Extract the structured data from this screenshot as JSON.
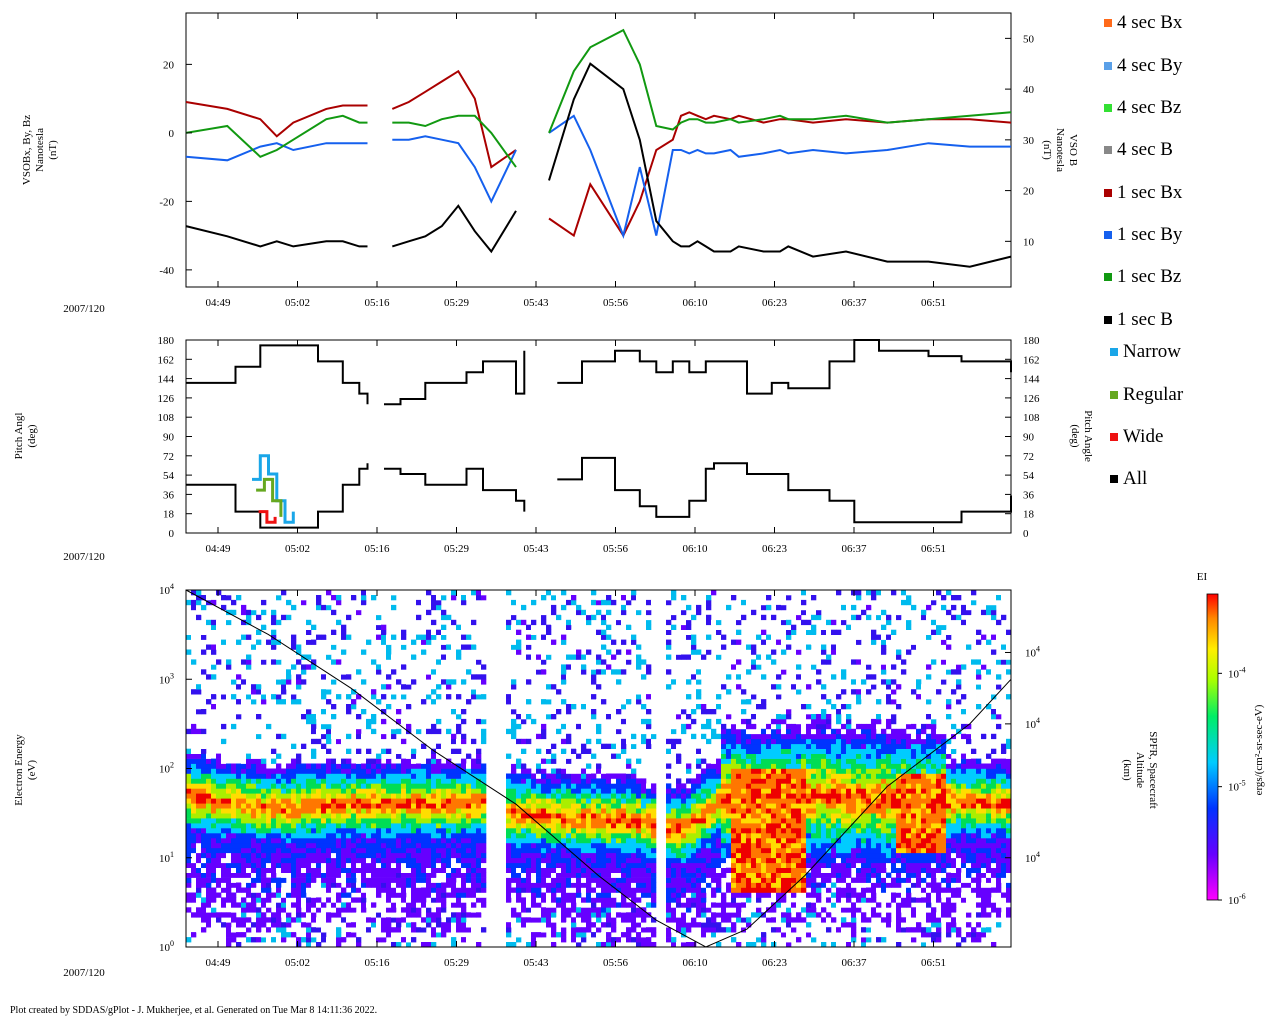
{
  "footer": "Plot created by SDDAS/gPlot - J. Mukherjee, et al.  Generated on Tue Mar 8 14:11:36 2022.",
  "date_label": "2007/120",
  "time_ticks": [
    "04:49",
    "05:02",
    "05:16",
    "05:29",
    "05:43",
    "05:56",
    "06:10",
    "06:23",
    "06:37",
    "06:51"
  ],
  "chart_data": [
    {
      "id": "magnetic-field",
      "type": "line",
      "ylabel_lines": [
        "VSOBx, By, Bz",
        "Nanotesla",
        "(nT)"
      ],
      "y2label_lines": [
        "VSO B",
        "Nanotesla",
        "(nT)"
      ],
      "ylim": [
        -45,
        35
      ],
      "y2lim": [
        1,
        55
      ],
      "yticks": [
        -40,
        -20,
        0,
        20
      ],
      "y2ticks": [
        10,
        20,
        30,
        40,
        50
      ],
      "legend": [
        {
          "label": "4 sec Bx",
          "color": "#ff6a1a"
        },
        {
          "label": "4 sec By",
          "color": "#5aa0e8"
        },
        {
          "label": "4 sec Bz",
          "color": "#33e033"
        },
        {
          "label": "4 sec B",
          "color": "#888888"
        },
        {
          "label": "1 sec Bx",
          "color": "#aa0000"
        },
        {
          "label": "1 sec By",
          "color": "#1560ee"
        },
        {
          "label": "1 sec Bz",
          "color": "#119911"
        },
        {
          "label": "1 sec B",
          "color": "#000000"
        }
      ],
      "series": [
        {
          "name": "1 sec Bx",
          "color": "#aa0000",
          "axis": "left",
          "x": [
            0,
            5,
            9,
            11,
            13,
            17,
            19,
            21,
            22,
            23,
            25,
            27,
            29,
            31,
            33,
            35,
            37,
            40,
            42,
            44,
            47,
            49,
            53,
            55,
            57,
            59,
            60,
            61,
            62,
            63,
            64,
            66,
            67,
            70,
            72,
            73,
            76,
            80,
            85,
            90,
            95,
            100
          ],
          "y": [
            9,
            7,
            4,
            -1,
            3,
            7,
            8,
            8,
            8,
            null,
            7,
            9,
            12,
            15,
            18,
            10,
            -10,
            -5,
            null,
            -25,
            -30,
            -15,
            -30,
            -20,
            -5,
            -2,
            5,
            6,
            5,
            4,
            5,
            4,
            5,
            3,
            4,
            4,
            3,
            4,
            3,
            4,
            4,
            3
          ]
        },
        {
          "name": "1 sec By",
          "color": "#1560ee",
          "axis": "left",
          "x": [
            0,
            5,
            9,
            11,
            13,
            17,
            19,
            21,
            22,
            23,
            25,
            27,
            29,
            31,
            33,
            35,
            37,
            40,
            42,
            44,
            47,
            49,
            53,
            55,
            57,
            59,
            60,
            61,
            62,
            63,
            64,
            66,
            67,
            70,
            72,
            73,
            76,
            80,
            85,
            90,
            95,
            100
          ],
          "y": [
            -7,
            -8,
            -4,
            -3,
            -5,
            -3,
            -3,
            -3,
            -3,
            null,
            -2,
            -2,
            -1,
            -2,
            -3,
            -10,
            -20,
            -5,
            null,
            0,
            5,
            -5,
            -30,
            -10,
            -30,
            -5,
            -5,
            -6,
            -5,
            -6,
            -6,
            -5,
            -7,
            -6,
            -5,
            -6,
            -5,
            -6,
            -5,
            -3,
            -4,
            -4
          ]
        },
        {
          "name": "1 sec Bz",
          "color": "#119911",
          "axis": "left",
          "x": [
            0,
            5,
            9,
            11,
            13,
            17,
            19,
            21,
            22,
            23,
            25,
            27,
            29,
            31,
            33,
            35,
            37,
            40,
            42,
            44,
            47,
            49,
            53,
            55,
            57,
            59,
            60,
            61,
            62,
            63,
            64,
            66,
            67,
            70,
            72,
            73,
            76,
            80,
            85,
            90,
            95,
            100
          ],
          "y": [
            0,
            2,
            -7,
            -5,
            -2,
            4,
            5,
            3,
            3,
            null,
            3,
            3,
            2,
            4,
            5,
            5,
            0,
            -10,
            null,
            0,
            18,
            25,
            30,
            20,
            2,
            1,
            3,
            4,
            4,
            3,
            3,
            4,
            3,
            4,
            5,
            4,
            4,
            5,
            3,
            4,
            5,
            6
          ]
        },
        {
          "name": "1 sec B",
          "color": "#000000",
          "axis": "right",
          "x": [
            0,
            5,
            9,
            11,
            13,
            17,
            19,
            21,
            22,
            23,
            25,
            27,
            29,
            31,
            33,
            35,
            37,
            40,
            42,
            44,
            47,
            49,
            53,
            55,
            57,
            59,
            60,
            61,
            62,
            63,
            64,
            66,
            67,
            70,
            72,
            73,
            76,
            80,
            85,
            90,
            95,
            100
          ],
          "y": [
            13,
            11,
            9,
            10,
            9,
            10,
            10,
            9,
            9,
            null,
            9,
            10,
            11,
            13,
            17,
            12,
            8,
            16,
            null,
            22,
            38,
            45,
            40,
            30,
            14,
            10,
            9,
            9,
            10,
            9,
            8,
            8,
            9,
            8,
            8,
            9,
            7,
            8,
            6,
            6,
            5,
            7
          ]
        }
      ]
    },
    {
      "id": "pitch-angle",
      "type": "step-line",
      "ylabel_lines": [
        "Pitch Angl",
        "(deg)"
      ],
      "y2label_lines": [
        "Pitch Angle",
        "(deg)"
      ],
      "ylim": [
        0,
        180
      ],
      "yticks": [
        0,
        18,
        36,
        54,
        72,
        90,
        108,
        126,
        144,
        162,
        180
      ],
      "legend": [
        {
          "label": "Narrow",
          "color": "#1aa6e8"
        },
        {
          "label": "Regular",
          "color": "#66a820"
        },
        {
          "label": "Wide",
          "color": "#ee1111"
        },
        {
          "label": "All",
          "color": "#000000"
        }
      ],
      "series": [
        {
          "name": "All upper",
          "color": "#000000",
          "x": [
            0,
            4,
            6,
            9,
            12,
            16,
            19,
            21,
            22,
            23,
            24,
            26,
            29,
            34,
            36,
            40,
            41,
            43,
            45,
            48,
            52,
            55,
            57,
            59,
            61,
            63,
            64,
            68,
            71,
            73,
            78,
            81,
            84,
            88,
            90,
            94,
            100
          ],
          "y": [
            140,
            140,
            155,
            175,
            175,
            160,
            140,
            130,
            120,
            null,
            120,
            125,
            140,
            150,
            160,
            130,
            170,
            null,
            140,
            160,
            170,
            160,
            150,
            160,
            150,
            160,
            160,
            130,
            140,
            135,
            160,
            180,
            170,
            170,
            165,
            160,
            150
          ]
        },
        {
          "name": "All lower",
          "color": "#000000",
          "x": [
            0,
            4,
            6,
            9,
            12,
            16,
            19,
            21,
            22,
            23,
            24,
            26,
            29,
            34,
            36,
            40,
            41,
            43,
            45,
            48,
            52,
            55,
            57,
            59,
            61,
            63,
            64,
            68,
            71,
            73,
            78,
            81,
            84,
            88,
            90,
            94,
            100
          ],
          "y": [
            45,
            45,
            20,
            5,
            5,
            20,
            45,
            60,
            65,
            null,
            60,
            55,
            45,
            60,
            40,
            30,
            20,
            null,
            50,
            70,
            40,
            25,
            15,
            15,
            30,
            60,
            65,
            55,
            55,
            40,
            30,
            10,
            10,
            10,
            10,
            20,
            35
          ]
        },
        {
          "name": "Narrow",
          "color": "#1aa6e8",
          "x": [
            8,
            9,
            10,
            11,
            12,
            13
          ],
          "y": [
            50,
            72,
            55,
            30,
            10,
            20
          ]
        },
        {
          "name": "Regular",
          "color": "#66a820",
          "x": [
            8.5,
            9.5,
            10.5,
            11.5
          ],
          "y": [
            40,
            50,
            30,
            15
          ]
        },
        {
          "name": "Wide",
          "color": "#ee1111",
          "x": [
            8.8,
            9.8,
            10.8
          ],
          "y": [
            20,
            10,
            15
          ]
        }
      ]
    },
    {
      "id": "electron-spectrogram",
      "type": "heatmap",
      "ylabel_lines": [
        "Electron Energy",
        "(eV)"
      ],
      "y2label_lines": [
        "SPFR, Spacecraft",
        "Altitude",
        "(km)"
      ],
      "yticks": [
        {
          "sup": "0",
          "val": 1
        },
        {
          "sup": "1",
          "val": 10
        },
        {
          "sup": "2",
          "val": 100
        },
        {
          "sup": "3",
          "val": 1000
        },
        {
          "sup": "4",
          "val": 10000
        }
      ],
      "y2ticks": [
        {
          "sup": "4",
          "log": 3.3
        },
        {
          "sup": "4",
          "log": 2.5
        },
        {
          "sup": "4",
          "log": 1.0
        }
      ],
      "ylim_log": [
        0,
        4
      ],
      "colorbar": {
        "title": "EI",
        "label": "ergs/(cm²-sr-sec-eV)",
        "ticks": [
          {
            "sup": "-4",
            "log": -4
          },
          {
            "sup": "-5",
            "log": -5
          },
          {
            "sup": "-6",
            "log": -6
          }
        ],
        "range_log": [
          -6,
          -3.3
        ]
      },
      "gaps": [
        [
          36.5,
          38.7
        ],
        [
          56.8,
          58.0
        ]
      ],
      "peak_energy_log": [
        {
          "x": 0,
          "e": 1.7
        },
        {
          "x": 10,
          "e": 1.55
        },
        {
          "x": 20,
          "e": 1.6
        },
        {
          "x": 36,
          "e": 1.6
        },
        {
          "x": 40,
          "e": 1.5
        },
        {
          "x": 55,
          "e": 1.4
        },
        {
          "x": 60,
          "e": 1.3
        },
        {
          "x": 66,
          "e": 1.7
        },
        {
          "x": 75,
          "e": 1.7
        },
        {
          "x": 100,
          "e": 1.6
        }
      ],
      "altitude_curve": {
        "x": [
          0,
          10,
          20,
          30,
          40,
          50,
          57,
          63,
          68,
          75,
          85,
          95,
          100
        ],
        "y_log": [
          4.0,
          3.5,
          2.9,
          2.2,
          1.6,
          0.8,
          0.3,
          0.0,
          0.2,
          0.8,
          1.8,
          2.5,
          3.0
        ]
      }
    }
  ]
}
